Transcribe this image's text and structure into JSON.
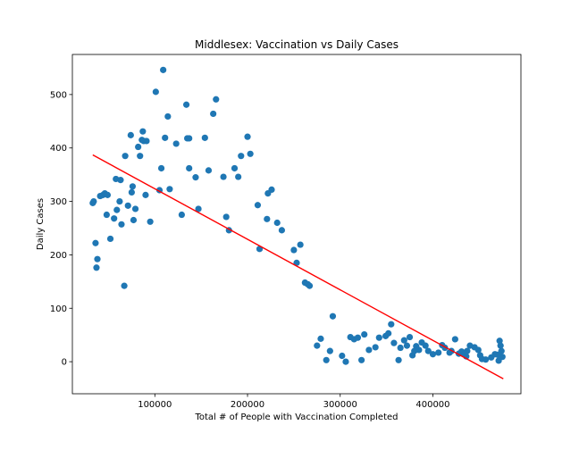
{
  "chart_data": {
    "type": "scatter",
    "title": "Middlesex: Vaccination vs Daily Cases",
    "xlabel": "Total # of People with Vaccination Completed",
    "ylabel": "Daily Cases",
    "xlim": [
      11000,
      495000
    ],
    "ylim": [
      -60,
      575
    ],
    "xticks": [
      100000,
      200000,
      300000,
      400000
    ],
    "xtick_labels": [
      "100000",
      "200000",
      "300000",
      "400000"
    ],
    "yticks": [
      0,
      100,
      200,
      300,
      400,
      500
    ],
    "ytick_labels": [
      "0",
      "100",
      "200",
      "300",
      "400",
      "500"
    ],
    "grid": false,
    "colors": {
      "points": "#1f77b4",
      "fit_line": "#ff0000"
    },
    "series": [
      {
        "kind": "points",
        "x": [
          33000,
          34000,
          36000,
          37000,
          38000,
          41000,
          44000,
          46000,
          48000,
          49000,
          52000,
          56000,
          58000,
          59000,
          62000,
          63000,
          64000,
          67000,
          68000,
          71000,
          74000,
          75000,
          76000,
          77000,
          79000,
          82000,
          84000,
          86000,
          87000,
          88000,
          90000,
          91000,
          95000,
          101000,
          105000,
          107000,
          109000,
          111000,
          114000,
          116000,
          123000,
          129000,
          134000,
          135000,
          137000,
          137000,
          144000,
          147000,
          154000,
          158000,
          163000,
          166000,
          174000,
          177000,
          180000,
          186000,
          190000,
          193000,
          200000,
          203000,
          211000,
          213000,
          221000,
          222000,
          226000,
          232000,
          237000,
          250000,
          253000,
          257000,
          262000,
          265000,
          267000,
          275000,
          279000,
          285000,
          289000,
          292000,
          302000,
          306000,
          311000,
          315000,
          319000,
          323000,
          326000,
          331000,
          338000,
          342000,
          349000,
          352000,
          355000,
          358000,
          363000,
          365000,
          369000,
          372000,
          375000,
          378000,
          380000,
          382000,
          385000,
          388000,
          392000,
          395000,
          400000,
          406000,
          410000,
          413000,
          418000,
          420000,
          424000,
          428000,
          431000,
          434000,
          436000,
          437000,
          440000,
          445000,
          449000,
          451000,
          453000,
          457000,
          463000,
          467000,
          470000,
          471000,
          472000,
          473000,
          474000,
          475000
        ],
        "y": [
          297,
          300,
          222,
          176,
          192,
          310,
          312,
          315,
          275,
          312,
          230,
          268,
          342,
          284,
          300,
          340,
          257,
          142,
          385,
          292,
          424,
          317,
          328,
          265,
          286,
          402,
          385,
          415,
          431,
          413,
          312,
          413,
          262,
          505,
          321,
          362,
          546,
          419,
          459,
          323,
          408,
          275,
          481,
          418,
          362,
          418,
          345,
          286,
          419,
          358,
          464,
          491,
          346,
          271,
          246,
          362,
          346,
          385,
          421,
          389,
          293,
          211,
          267,
          315,
          322,
          260,
          246,
          209,
          185,
          219,
          148,
          145,
          142,
          30,
          43,
          3,
          20,
          85,
          11,
          0,
          46,
          42,
          45,
          3,
          51,
          22,
          27,
          45,
          48,
          53,
          70,
          35,
          3,
          26,
          40,
          30,
          46,
          12,
          20,
          29,
          22,
          36,
          30,
          20,
          14,
          17,
          31,
          26,
          17,
          20,
          42,
          15,
          19,
          14,
          10,
          20,
          30,
          27,
          22,
          12,
          5,
          4,
          8,
          14,
          13,
          2,
          39,
          30,
          20,
          9
        ]
      },
      {
        "kind": "fit_line",
        "x": [
          33000,
          476000
        ],
        "y": [
          387,
          -32
        ]
      }
    ]
  }
}
